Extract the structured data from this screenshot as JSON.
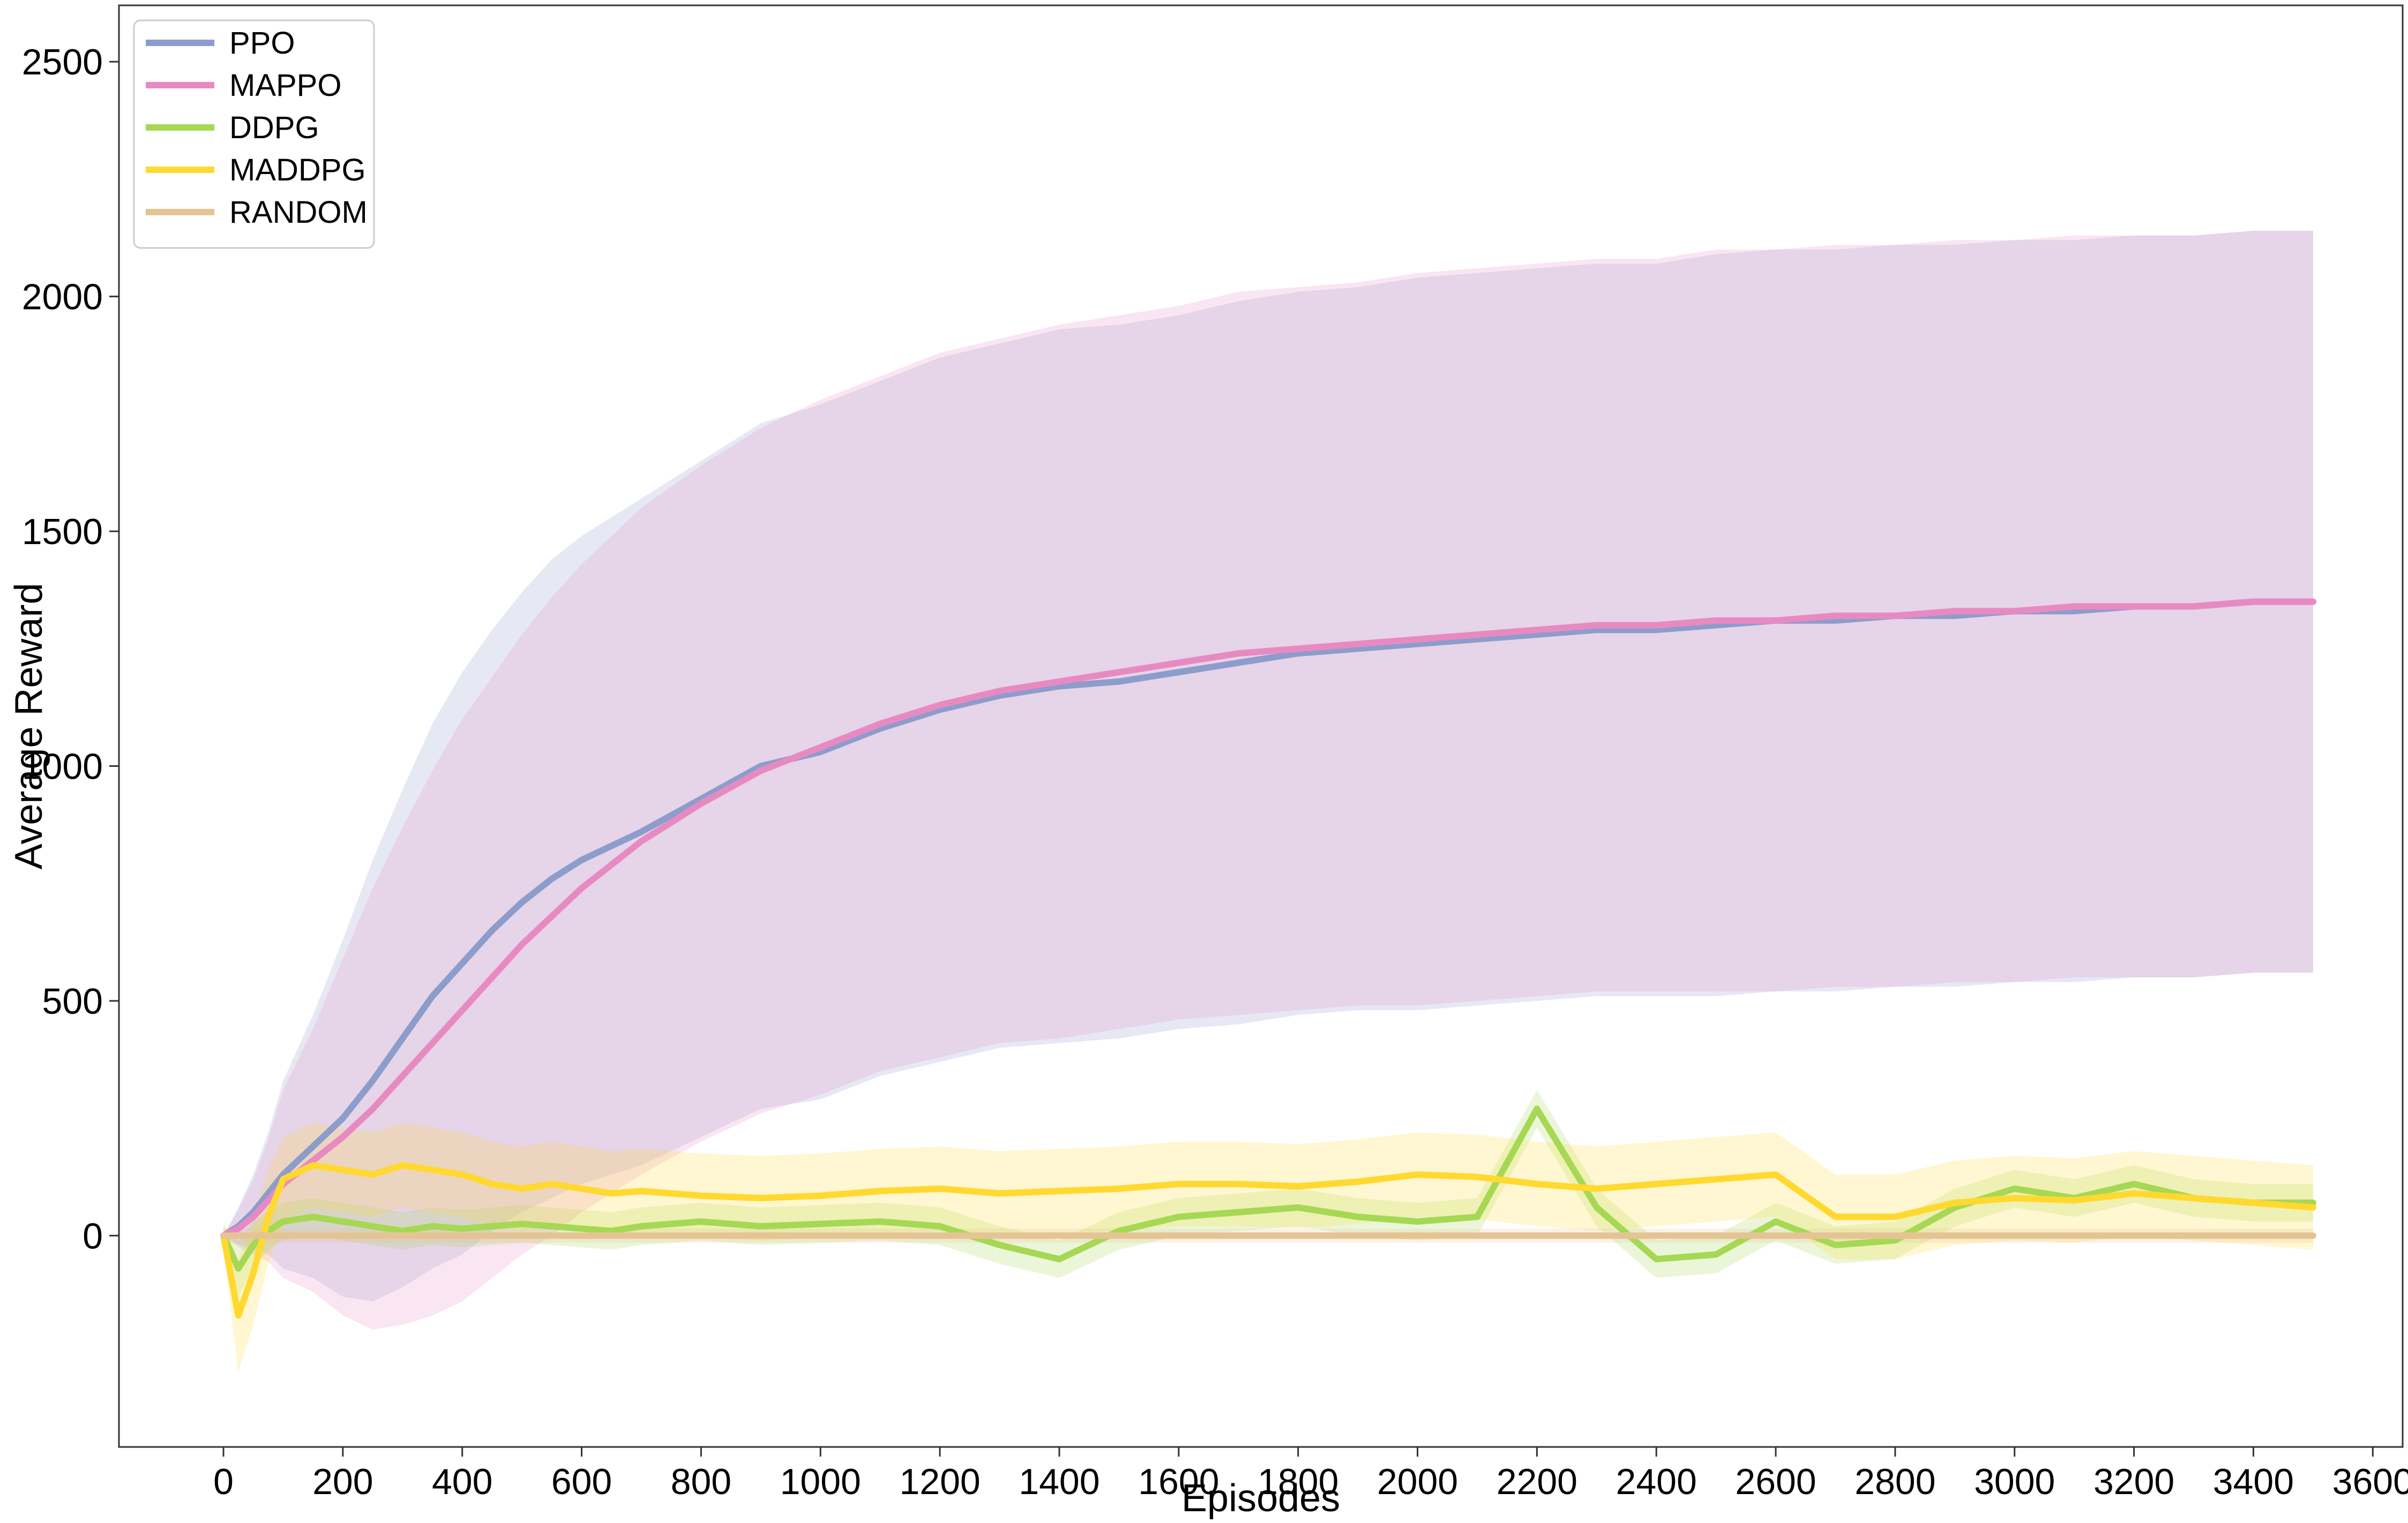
{
  "chart_data": {
    "type": "line",
    "title": "",
    "xlabel": "Episodes",
    "ylabel": "Average Reward",
    "xlim": [
      -175,
      3650
    ],
    "ylim": [
      -450,
      2620
    ],
    "xticks": [
      0,
      200,
      400,
      600,
      800,
      1000,
      1200,
      1400,
      1600,
      1800,
      2000,
      2200,
      2400,
      2600,
      2800,
      3000,
      3200,
      3400,
      3600
    ],
    "xtick_labels": [
      "0",
      "200",
      "400",
      "600",
      "800",
      "1000",
      "1200",
      "1400",
      "1600",
      "1800",
      "2000",
      "2200",
      "2400",
      "2600",
      "2800",
      "3000",
      "3200",
      "3400",
      "3600"
    ],
    "yticks": [
      0,
      500,
      1000,
      1500,
      2000,
      2500
    ],
    "ytick_labels": [
      "0",
      "500",
      "1000",
      "1500",
      "2000",
      "2500"
    ],
    "grid": false,
    "legend_position": "top-left",
    "x": [
      0,
      25,
      50,
      75,
      100,
      150,
      200,
      250,
      300,
      350,
      400,
      450,
      500,
      550,
      600,
      650,
      700,
      800,
      900,
      1000,
      1100,
      1200,
      1300,
      1400,
      1500,
      1600,
      1700,
      1800,
      1900,
      2000,
      2100,
      2200,
      2300,
      2400,
      2500,
      2600,
      2700,
      2800,
      2900,
      3000,
      3100,
      3200,
      3300,
      3400,
      3500
    ],
    "series": [
      {
        "name": "PPO",
        "color": "#8c9dcc",
        "values": [
          0,
          20,
          50,
          90,
          130,
          190,
          250,
          330,
          420,
          510,
          580,
          650,
          710,
          760,
          800,
          830,
          860,
          930,
          1000,
          1030,
          1080,
          1120,
          1150,
          1170,
          1180,
          1200,
          1220,
          1240,
          1250,
          1260,
          1270,
          1280,
          1290,
          1290,
          1300,
          1310,
          1310,
          1320,
          1320,
          1330,
          1330,
          1340,
          1340,
          1350,
          1350
        ],
        "band": [
          0,
          40,
          80,
          130,
          200,
          280,
          380,
          470,
          530,
          580,
          620,
          640,
          660,
          680,
          690,
          700,
          710,
          720,
          730,
          740,
          740,
          750,
          750,
          760,
          760,
          760,
          770,
          770,
          770,
          780,
          780,
          780,
          780,
          780,
          790,
          790,
          790,
          790,
          790,
          790,
          790,
          790,
          790,
          790,
          790
        ]
      },
      {
        "name": "MAPPO",
        "color": "#e88ac2",
        "values": [
          0,
          15,
          40,
          75,
          110,
          160,
          210,
          270,
          340,
          410,
          480,
          550,
          620,
          680,
          740,
          790,
          840,
          920,
          990,
          1040,
          1090,
          1130,
          1160,
          1180,
          1200,
          1220,
          1240,
          1250,
          1260,
          1270,
          1280,
          1290,
          1300,
          1300,
          1310,
          1310,
          1320,
          1320,
          1330,
          1330,
          1340,
          1340,
          1340,
          1350,
          1350
        ],
        "band": [
          0,
          40,
          80,
          130,
          200,
          280,
          380,
          470,
          530,
          580,
          620,
          640,
          660,
          680,
          690,
          700,
          710,
          720,
          730,
          740,
          740,
          750,
          750,
          760,
          760,
          760,
          770,
          770,
          770,
          780,
          780,
          780,
          780,
          780,
          790,
          790,
          790,
          790,
          790,
          790,
          790,
          790,
          790,
          790,
          790
        ]
      },
      {
        "name": "DDPG",
        "color": "#a6d854",
        "values": [
          0,
          -70,
          -20,
          10,
          30,
          40,
          30,
          20,
          10,
          20,
          15,
          20,
          25,
          20,
          15,
          10,
          20,
          30,
          20,
          25,
          30,
          20,
          -20,
          -50,
          10,
          40,
          50,
          60,
          40,
          30,
          40,
          270,
          60,
          -50,
          -40,
          30,
          -20,
          -10,
          60,
          100,
          80,
          110,
          80,
          70,
          70
        ],
        "band": [
          20,
          60,
          50,
          40,
          40,
          40,
          40,
          40,
          40,
          40,
          40,
          40,
          40,
          40,
          40,
          40,
          40,
          40,
          40,
          40,
          40,
          40,
          40,
          40,
          40,
          40,
          40,
          40,
          40,
          40,
          40,
          40,
          40,
          40,
          40,
          40,
          40,
          40,
          40,
          40,
          40,
          40,
          40,
          40,
          40
        ]
      },
      {
        "name": "MADDPG",
        "color": "#ffd92f",
        "values": [
          0,
          -170,
          -80,
          40,
          120,
          150,
          140,
          130,
          150,
          140,
          130,
          110,
          100,
          110,
          100,
          90,
          95,
          85,
          80,
          85,
          95,
          100,
          90,
          95,
          100,
          110,
          110,
          105,
          115,
          130,
          125,
          110,
          100,
          110,
          120,
          130,
          40,
          40,
          70,
          80,
          75,
          90,
          80,
          70,
          60
        ],
        "band": [
          30,
          120,
          110,
          100,
          90,
          90,
          90,
          90,
          90,
          90,
          90,
          90,
          90,
          90,
          90,
          90,
          90,
          90,
          90,
          90,
          90,
          90,
          90,
          90,
          90,
          90,
          90,
          90,
          90,
          90,
          90,
          90,
          90,
          90,
          90,
          90,
          90,
          90,
          90,
          90,
          90,
          90,
          90,
          90,
          90
        ]
      },
      {
        "name": "RANDOM",
        "color": "#e5c494",
        "values": [
          0,
          0,
          0,
          0,
          0,
          0,
          0,
          0,
          0,
          0,
          0,
          0,
          0,
          0,
          0,
          0,
          0,
          0,
          0,
          0,
          0,
          0,
          0,
          0,
          0,
          0,
          0,
          0,
          0,
          0,
          0,
          0,
          0,
          0,
          0,
          0,
          0,
          0,
          0,
          0,
          0,
          0,
          0,
          0,
          0
        ],
        "band": [
          15,
          15,
          15,
          15,
          15,
          15,
          15,
          15,
          15,
          15,
          15,
          15,
          15,
          15,
          15,
          15,
          15,
          15,
          15,
          15,
          15,
          15,
          15,
          15,
          15,
          15,
          15,
          15,
          15,
          15,
          15,
          15,
          15,
          15,
          15,
          15,
          15,
          15,
          15,
          15,
          15,
          15,
          15,
          15,
          15
        ]
      }
    ]
  }
}
